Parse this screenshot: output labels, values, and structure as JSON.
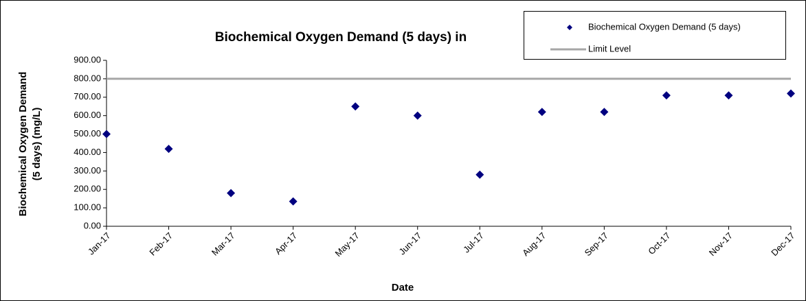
{
  "chart_data": {
    "type": "line",
    "title": "Biochemical Oxygen Demand (5 days) in",
    "xlabel": "Date",
    "ylabel": [
      "Biochemical Oxygen Demand",
      "(5 days) (mg/L)"
    ],
    "categories": [
      "Jan-17",
      "Feb-17",
      "Mar-17",
      "Apr-17",
      "May-17",
      "Jun-17",
      "Jul-17",
      "Aug-17",
      "Sep-17",
      "Oct-17",
      "Nov-17",
      "Dec-17"
    ],
    "series": [
      {
        "name": "Biochemical Oxygen Demand (5 days)",
        "color": "#000080",
        "style": "markers",
        "values": [
          500,
          420,
          180,
          135,
          650,
          600,
          280,
          620,
          620,
          710,
          710,
          720
        ]
      },
      {
        "name": "Limit Level",
        "color": "#a6a6a6",
        "style": "line",
        "values": [
          800,
          800,
          800,
          800,
          800,
          800,
          800,
          800,
          800,
          800,
          800,
          800
        ]
      }
    ],
    "ylim": [
      0,
      900
    ],
    "yticks": [
      {
        "value": 0,
        "label": "0.00"
      },
      {
        "value": 100,
        "label": "100.00"
      },
      {
        "value": 200,
        "label": "200.00"
      },
      {
        "value": 300,
        "label": "300.00"
      },
      {
        "value": 400,
        "label": "400.00"
      },
      {
        "value": 500,
        "label": "500.00"
      },
      {
        "value": 600,
        "label": "600.00"
      },
      {
        "value": 700,
        "label": "700.00"
      },
      {
        "value": 800,
        "label": "800.00"
      },
      {
        "value": 900,
        "label": "900.00"
      }
    ],
    "legend": "top-right"
  }
}
